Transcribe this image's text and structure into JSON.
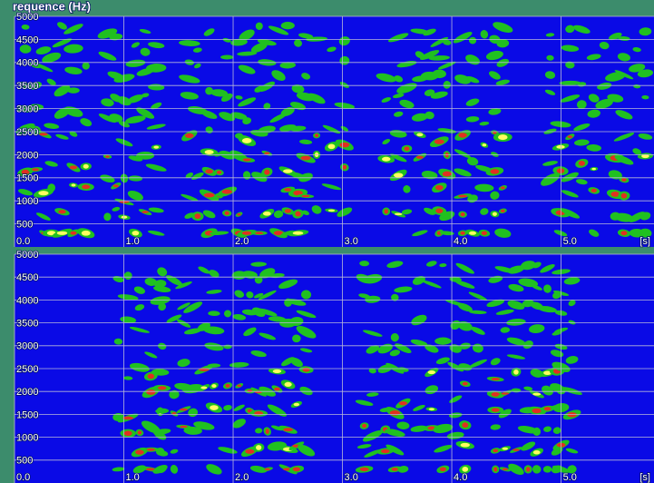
{
  "header": {
    "title": "requence (Hz)"
  },
  "panels": [
    {
      "ylim": [
        0,
        5000
      ],
      "yticks": [
        500,
        1000,
        1500,
        2000,
        2500,
        3000,
        3500,
        4000,
        4500,
        5000
      ],
      "xlim": [
        0,
        5.85
      ],
      "xticks": [
        {
          "value": 0,
          "label": "0.0"
        },
        {
          "value": 1,
          "label": "1.0"
        },
        {
          "value": 2,
          "label": "2.0"
        },
        {
          "value": 3,
          "label": "3.0"
        },
        {
          "value": 4,
          "label": "4.0"
        },
        {
          "value": 5,
          "label": "5.0"
        }
      ],
      "x_unit": "[s]"
    },
    {
      "ylim": [
        0,
        5000
      ],
      "yticks": [
        500,
        1000,
        1500,
        2000,
        2500,
        3000,
        3500,
        4000,
        4500,
        5000
      ],
      "xlim": [
        0,
        5.85
      ],
      "xticks": [
        {
          "value": 0,
          "label": "0.0"
        },
        {
          "value": 1,
          "label": "1.0"
        },
        {
          "value": 2,
          "label": "2.0"
        },
        {
          "value": 3,
          "label": "3.0"
        },
        {
          "value": 4,
          "label": "4.0"
        },
        {
          "value": 5,
          "label": "5.0"
        }
      ],
      "x_unit": "[s]"
    }
  ]
}
